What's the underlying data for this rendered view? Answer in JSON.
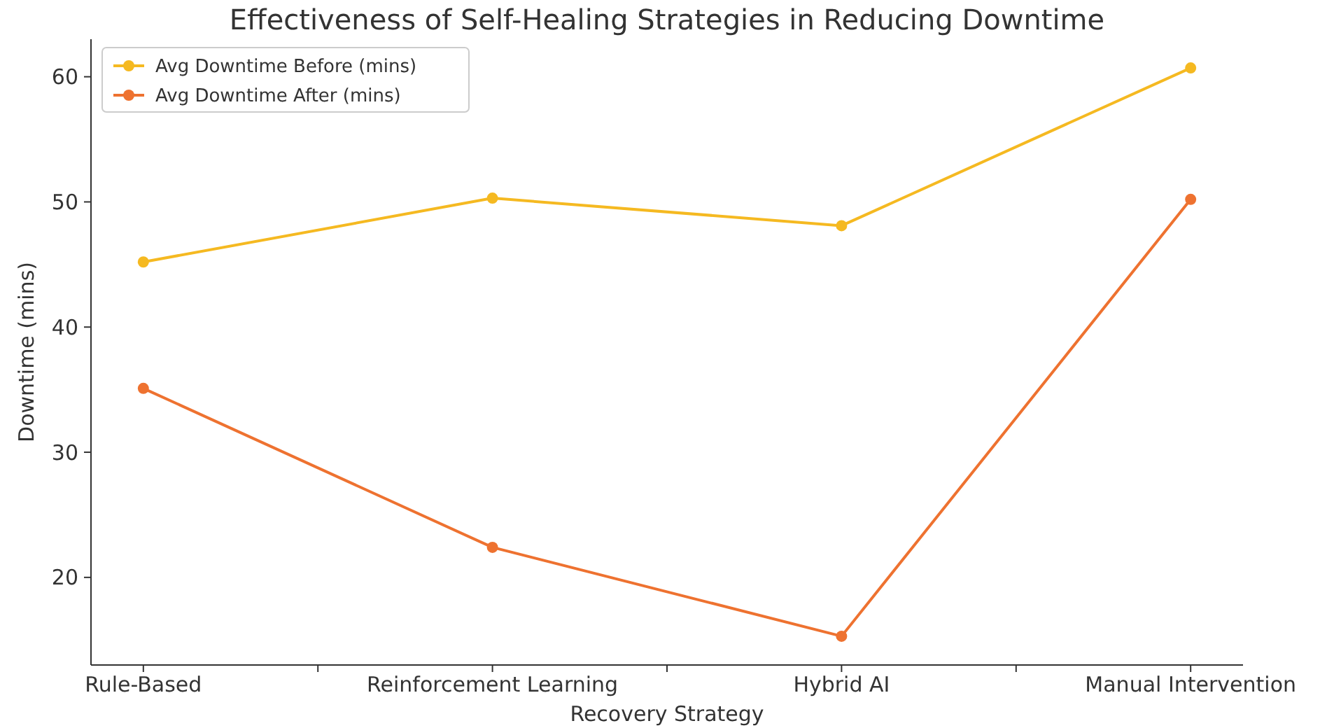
{
  "chart_data": {
    "type": "line",
    "title": "Effectiveness of Self-Healing Strategies in Reducing Downtime",
    "xlabel": "Recovery Strategy",
    "ylabel": "Downtime (mins)",
    "categories": [
      "Rule-Based",
      "Reinforcement Learning",
      "Hybrid AI",
      "Manual Intervention"
    ],
    "series": [
      {
        "name": "Avg Downtime Before (mins)",
        "color": "#f5b921",
        "values": [
          45.2,
          50.3,
          48.1,
          60.7
        ]
      },
      {
        "name": "Avg Downtime After (mins)",
        "color": "#ee7230",
        "values": [
          35.1,
          22.4,
          15.3,
          50.2
        ]
      }
    ],
    "ylim": [
      13,
      63
    ],
    "yticks": [
      20,
      30,
      40,
      50,
      60
    ],
    "legend": "top left",
    "marker": "circle",
    "line_style": "solid",
    "grid": false
  }
}
